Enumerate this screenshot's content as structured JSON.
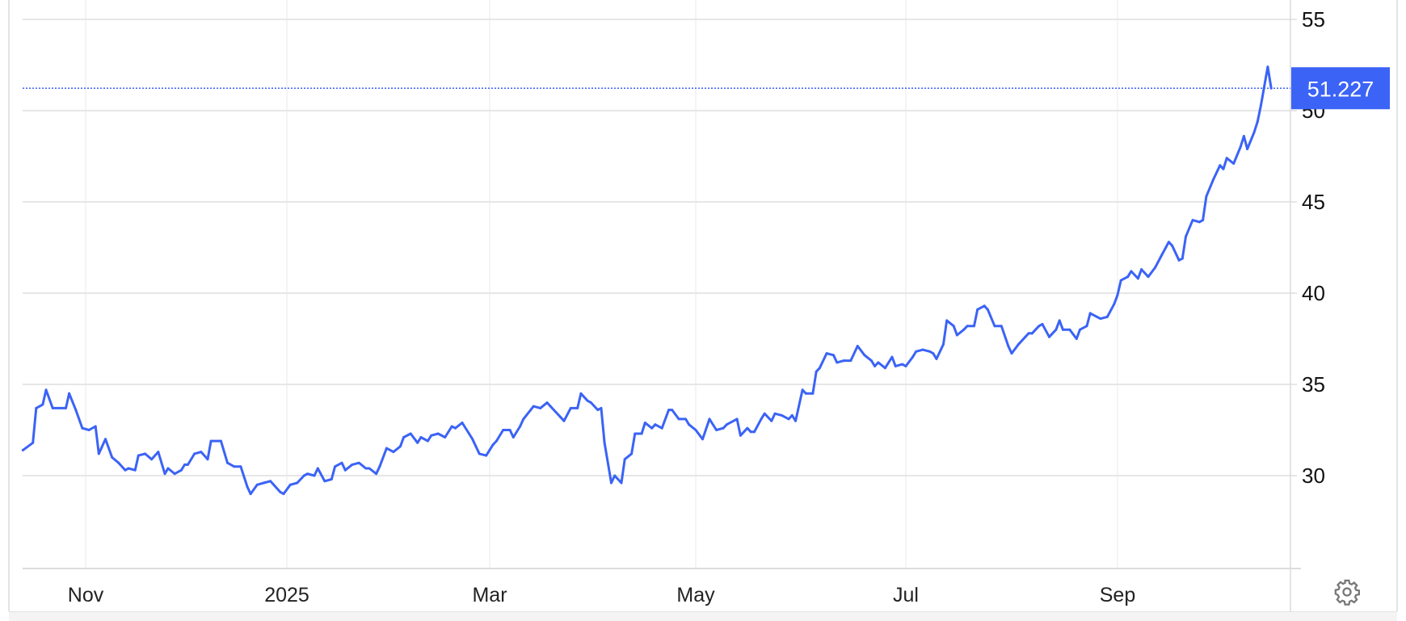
{
  "chart_data": {
    "type": "line",
    "title": "",
    "xlabel": "",
    "ylabel": "",
    "ylim": [
      25,
      55
    ],
    "y_ticks": [
      "55",
      "50",
      "45",
      "40",
      "35",
      "30"
    ],
    "y_tick_values": [
      55,
      50,
      45,
      40,
      35,
      30
    ],
    "x_ticks": [
      "Nov",
      "2025",
      "Mar",
      "May",
      "Jul",
      "Sep"
    ],
    "x_tick_dates": [
      "2024-11-01",
      "2025-01-01",
      "2025-03-01",
      "2025-05-01",
      "2025-07-01",
      "2025-09-01"
    ],
    "grid": true,
    "line_color": "#3b63f6",
    "last_value_label": "51.227",
    "last_value": 51.227,
    "series": [
      {
        "points": [
          [
            "2024-10-13",
            31.4
          ],
          [
            "2024-10-16",
            31.8
          ],
          [
            "2024-10-17",
            33.7
          ],
          [
            "2024-10-19",
            33.9
          ],
          [
            "2024-10-20",
            34.7
          ],
          [
            "2024-10-22",
            33.7
          ],
          [
            "2024-10-24",
            33.7
          ],
          [
            "2024-10-26",
            33.7
          ],
          [
            "2024-10-27",
            34.5
          ],
          [
            "2024-10-29",
            33.6
          ],
          [
            "2024-10-31",
            32.6
          ],
          [
            "2024-11-02",
            32.5
          ],
          [
            "2024-11-04",
            32.7
          ],
          [
            "2024-11-05",
            31.2
          ],
          [
            "2024-11-07",
            32.0
          ],
          [
            "2024-11-09",
            31.0
          ],
          [
            "2024-11-11",
            30.7
          ],
          [
            "2024-11-13",
            30.3
          ],
          [
            "2024-11-14",
            30.4
          ],
          [
            "2024-11-16",
            30.3
          ],
          [
            "2024-11-17",
            31.1
          ],
          [
            "2024-11-19",
            31.2
          ],
          [
            "2024-11-21",
            30.9
          ],
          [
            "2024-11-23",
            31.3
          ],
          [
            "2024-11-25",
            30.1
          ],
          [
            "2024-11-26",
            30.4
          ],
          [
            "2024-11-28",
            30.1
          ],
          [
            "2024-11-30",
            30.3
          ],
          [
            "2024-12-01",
            30.6
          ],
          [
            "2024-12-02",
            30.6
          ],
          [
            "2024-12-04",
            31.2
          ],
          [
            "2024-12-06",
            31.3
          ],
          [
            "2024-12-08",
            30.9
          ],
          [
            "2024-12-09",
            31.9
          ],
          [
            "2024-12-12",
            31.9
          ],
          [
            "2024-12-14",
            30.7
          ],
          [
            "2024-12-16",
            30.5
          ],
          [
            "2024-12-18",
            30.5
          ],
          [
            "2024-12-20",
            29.4
          ],
          [
            "2024-12-21",
            29.0
          ],
          [
            "2024-12-23",
            29.5
          ],
          [
            "2024-12-25",
            29.6
          ],
          [
            "2024-12-27",
            29.7
          ],
          [
            "2024-12-30",
            29.1
          ],
          [
            "2024-12-31",
            29.0
          ],
          [
            "2025-01-02",
            29.5
          ],
          [
            "2025-01-04",
            29.6
          ],
          [
            "2025-01-06",
            30.0
          ],
          [
            "2025-01-07",
            30.1
          ],
          [
            "2025-01-09",
            30.0
          ],
          [
            "2025-01-10",
            30.4
          ],
          [
            "2025-01-12",
            29.7
          ],
          [
            "2025-01-14",
            29.8
          ],
          [
            "2025-01-15",
            30.5
          ],
          [
            "2025-01-17",
            30.7
          ],
          [
            "2025-01-18",
            30.3
          ],
          [
            "2025-01-20",
            30.6
          ],
          [
            "2025-01-22",
            30.7
          ],
          [
            "2025-01-24",
            30.4
          ],
          [
            "2025-01-25",
            30.4
          ],
          [
            "2025-01-27",
            30.1
          ],
          [
            "2025-01-28",
            30.5
          ],
          [
            "2025-01-30",
            31.5
          ],
          [
            "2025-02-01",
            31.3
          ],
          [
            "2025-02-03",
            31.6
          ],
          [
            "2025-02-04",
            32.1
          ],
          [
            "2025-02-06",
            32.3
          ],
          [
            "2025-02-08",
            31.8
          ],
          [
            "2025-02-09",
            32.1
          ],
          [
            "2025-02-11",
            31.9
          ],
          [
            "2025-02-12",
            32.2
          ],
          [
            "2025-02-14",
            32.3
          ],
          [
            "2025-02-16",
            32.1
          ],
          [
            "2025-02-18",
            32.7
          ],
          [
            "2025-02-19",
            32.6
          ],
          [
            "2025-02-21",
            32.9
          ],
          [
            "2025-02-23",
            32.3
          ],
          [
            "2025-02-24",
            32.0
          ],
          [
            "2025-02-26",
            31.2
          ],
          [
            "2025-02-28",
            31.1
          ],
          [
            "2025-03-02",
            31.7
          ],
          [
            "2025-03-03",
            31.9
          ],
          [
            "2025-03-05",
            32.5
          ],
          [
            "2025-03-07",
            32.5
          ],
          [
            "2025-03-08",
            32.1
          ],
          [
            "2025-03-10",
            32.7
          ],
          [
            "2025-03-11",
            33.1
          ],
          [
            "2025-03-14",
            33.8
          ],
          [
            "2025-03-16",
            33.7
          ],
          [
            "2025-03-18",
            34.0
          ],
          [
            "2025-03-19",
            33.8
          ],
          [
            "2025-03-22",
            33.2
          ],
          [
            "2025-03-23",
            33.0
          ],
          [
            "2025-03-25",
            33.7
          ],
          [
            "2025-03-27",
            33.7
          ],
          [
            "2025-03-28",
            34.5
          ],
          [
            "2025-03-30",
            34.1
          ],
          [
            "2025-03-31",
            34.0
          ],
          [
            "2025-04-02",
            33.6
          ],
          [
            "2025-04-03",
            33.7
          ],
          [
            "2025-04-04",
            31.8
          ],
          [
            "2025-04-06",
            29.6
          ],
          [
            "2025-04-07",
            30.0
          ],
          [
            "2025-04-09",
            29.6
          ],
          [
            "2025-04-10",
            30.9
          ],
          [
            "2025-04-12",
            31.2
          ],
          [
            "2025-04-13",
            32.3
          ],
          [
            "2025-04-15",
            32.3
          ],
          [
            "2025-04-16",
            32.9
          ],
          [
            "2025-04-18",
            32.6
          ],
          [
            "2025-04-19",
            32.8
          ],
          [
            "2025-04-21",
            32.6
          ],
          [
            "2025-04-23",
            33.6
          ],
          [
            "2025-04-24",
            33.6
          ],
          [
            "2025-04-26",
            33.1
          ],
          [
            "2025-04-28",
            33.1
          ],
          [
            "2025-04-29",
            32.8
          ],
          [
            "2025-05-01",
            32.5
          ],
          [
            "2025-05-03",
            32.0
          ],
          [
            "2025-05-05",
            33.1
          ],
          [
            "2025-05-07",
            32.5
          ],
          [
            "2025-05-09",
            32.6
          ],
          [
            "2025-05-10",
            32.8
          ],
          [
            "2025-05-13",
            33.1
          ],
          [
            "2025-05-14",
            32.2
          ],
          [
            "2025-05-16",
            32.6
          ],
          [
            "2025-05-17",
            32.4
          ],
          [
            "2025-05-18",
            32.4
          ],
          [
            "2025-05-20",
            33.1
          ],
          [
            "2025-05-21",
            33.4
          ],
          [
            "2025-05-23",
            33.0
          ],
          [
            "2025-05-24",
            33.4
          ],
          [
            "2025-05-26",
            33.3
          ],
          [
            "2025-05-28",
            33.1
          ],
          [
            "2025-05-29",
            33.3
          ],
          [
            "2025-05-30",
            33.0
          ],
          [
            "2025-06-01",
            34.7
          ],
          [
            "2025-06-02",
            34.5
          ],
          [
            "2025-06-04",
            34.5
          ],
          [
            "2025-06-05",
            35.7
          ],
          [
            "2025-06-06",
            35.9
          ],
          [
            "2025-06-08",
            36.7
          ],
          [
            "2025-06-10",
            36.6
          ],
          [
            "2025-06-11",
            36.2
          ],
          [
            "2025-06-13",
            36.3
          ],
          [
            "2025-06-15",
            36.3
          ],
          [
            "2025-06-17",
            37.1
          ],
          [
            "2025-06-19",
            36.6
          ],
          [
            "2025-06-21",
            36.3
          ],
          [
            "2025-06-22",
            36.0
          ],
          [
            "2025-06-23",
            36.2
          ],
          [
            "2025-06-25",
            35.9
          ],
          [
            "2025-06-27",
            36.5
          ],
          [
            "2025-06-28",
            36.0
          ],
          [
            "2025-06-30",
            36.1
          ],
          [
            "2025-07-01",
            36.0
          ],
          [
            "2025-07-03",
            36.5
          ],
          [
            "2025-07-04",
            36.8
          ],
          [
            "2025-07-06",
            36.9
          ],
          [
            "2025-07-08",
            36.8
          ],
          [
            "2025-07-09",
            36.7
          ],
          [
            "2025-07-10",
            36.4
          ],
          [
            "2025-07-12",
            37.2
          ],
          [
            "2025-07-13",
            38.5
          ],
          [
            "2025-07-15",
            38.2
          ],
          [
            "2025-07-16",
            37.7
          ],
          [
            "2025-07-18",
            38.0
          ],
          [
            "2025-07-19",
            38.2
          ],
          [
            "2025-07-21",
            38.2
          ],
          [
            "2025-07-22",
            39.1
          ],
          [
            "2025-07-24",
            39.3
          ],
          [
            "2025-07-25",
            39.1
          ],
          [
            "2025-07-27",
            38.2
          ],
          [
            "2025-07-29",
            38.2
          ],
          [
            "2025-07-31",
            37.1
          ],
          [
            "2025-08-01",
            36.7
          ],
          [
            "2025-08-03",
            37.2
          ],
          [
            "2025-08-05",
            37.6
          ],
          [
            "2025-08-06",
            37.8
          ],
          [
            "2025-08-07",
            37.8
          ],
          [
            "2025-08-09",
            38.2
          ],
          [
            "2025-08-10",
            38.3
          ],
          [
            "2025-08-12",
            37.6
          ],
          [
            "2025-08-14",
            38.0
          ],
          [
            "2025-08-15",
            38.5
          ],
          [
            "2025-08-16",
            38.0
          ],
          [
            "2025-08-18",
            38.0
          ],
          [
            "2025-08-20",
            37.5
          ],
          [
            "2025-08-21",
            38.0
          ],
          [
            "2025-08-23",
            38.2
          ],
          [
            "2025-08-24",
            38.9
          ],
          [
            "2025-08-26",
            38.7
          ],
          [
            "2025-08-27",
            38.6
          ],
          [
            "2025-08-29",
            38.7
          ],
          [
            "2025-08-31",
            39.4
          ],
          [
            "2025-09-01",
            39.9
          ],
          [
            "2025-09-02",
            40.7
          ],
          [
            "2025-09-04",
            40.9
          ],
          [
            "2025-09-05",
            41.2
          ],
          [
            "2025-09-07",
            40.8
          ],
          [
            "2025-09-08",
            41.3
          ],
          [
            "2025-09-10",
            40.9
          ],
          [
            "2025-09-12",
            41.4
          ],
          [
            "2025-09-14",
            42.1
          ],
          [
            "2025-09-16",
            42.8
          ],
          [
            "2025-09-17",
            42.6
          ],
          [
            "2025-09-19",
            41.8
          ],
          [
            "2025-09-20",
            41.9
          ],
          [
            "2025-09-21",
            43.1
          ],
          [
            "2025-09-23",
            44.0
          ],
          [
            "2025-09-25",
            43.9
          ],
          [
            "2025-09-26",
            44.0
          ],
          [
            "2025-09-27",
            45.3
          ],
          [
            "2025-09-29",
            46.2
          ],
          [
            "2025-10-01",
            47.0
          ],
          [
            "2025-10-02",
            46.8
          ],
          [
            "2025-10-03",
            47.4
          ],
          [
            "2025-10-05",
            47.1
          ],
          [
            "2025-10-07",
            48.0
          ],
          [
            "2025-10-08",
            48.6
          ],
          [
            "2025-10-09",
            47.9
          ],
          [
            "2025-10-11",
            48.8
          ],
          [
            "2025-10-12",
            49.4
          ],
          [
            "2025-10-13",
            50.3
          ],
          [
            "2025-10-15",
            52.4
          ],
          [
            "2025-10-16",
            51.227
          ]
        ]
      }
    ]
  },
  "icons": {
    "settings": "gear-icon"
  }
}
